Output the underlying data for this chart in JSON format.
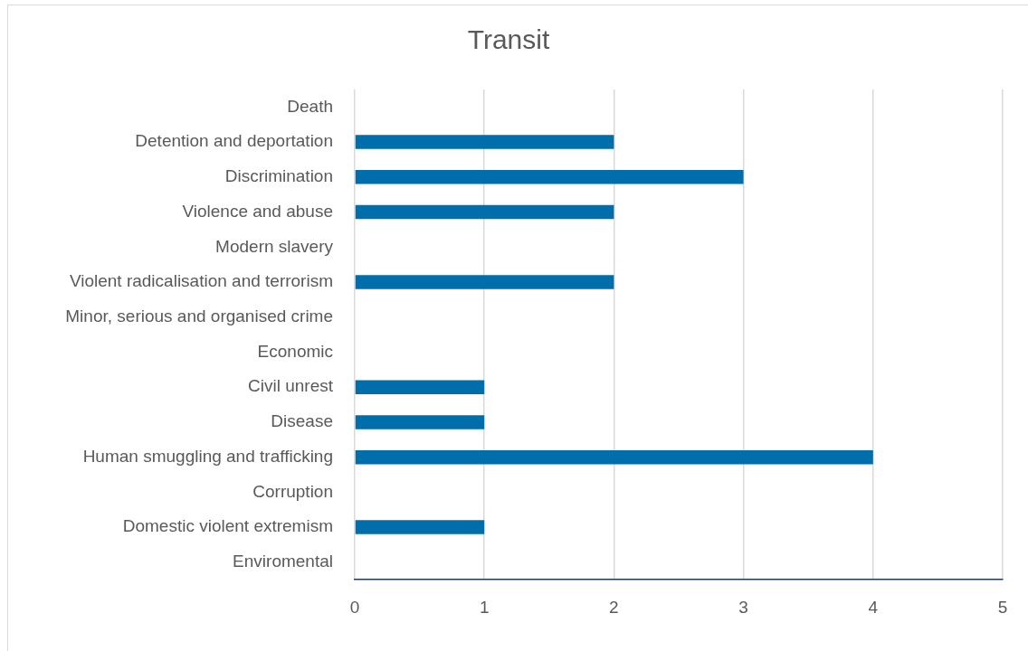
{
  "chart_data": {
    "type": "bar",
    "orientation": "horizontal",
    "title": "Transit",
    "categories": [
      "Death",
      "Detention and deportation",
      "Discrimination",
      "Violence and abuse",
      "Modern slavery",
      "Violent radicalisation and terrorism",
      "Minor, serious and organised crime",
      "Economic",
      "Civil unrest",
      "Disease",
      "Human smuggling and trafficking",
      "Corruption",
      "Domestic violent extremism",
      "Enviromental"
    ],
    "values": [
      0,
      2,
      3,
      2,
      0,
      2,
      0,
      0,
      1,
      1,
      4,
      0,
      1,
      0
    ],
    "color": "#006eaa",
    "xlim": [
      0,
      5
    ],
    "xticks": [
      0,
      1,
      2,
      3,
      4,
      5
    ],
    "grid": "x",
    "legend": false
  }
}
